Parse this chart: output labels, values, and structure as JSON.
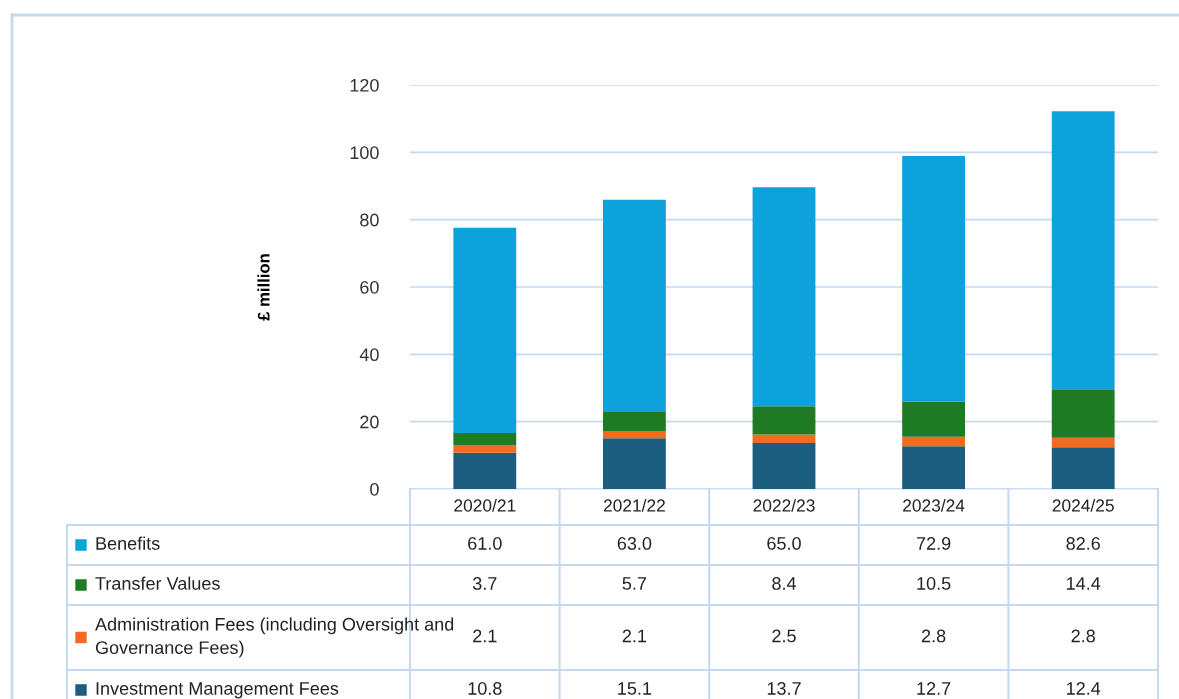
{
  "chart_data": {
    "type": "bar",
    "stacked": true,
    "ylabel": "£ million",
    "categories": [
      "2020/21",
      "2021/22",
      "2022/23",
      "2023/24",
      "2024/25"
    ],
    "series": [
      {
        "name": "Investment Management Fees",
        "color": "#1b5e80",
        "values": [
          10.8,
          15.1,
          13.7,
          12.7,
          12.4
        ],
        "value_labels": [
          "10.8",
          "15.1",
          "13.7",
          "12.7",
          "12.4"
        ]
      },
      {
        "name": "Administration Fees (including Oversight and Governance Fees)",
        "color": "#f26b21",
        "values": [
          2.1,
          2.1,
          2.5,
          2.8,
          2.8
        ],
        "value_labels": [
          "2.1",
          "2.1",
          "2.5",
          "2.8",
          "2.8"
        ]
      },
      {
        "name": "Transfer Values",
        "color": "#1f7a24",
        "values": [
          3.7,
          5.7,
          8.4,
          10.5,
          14.4
        ],
        "value_labels": [
          "3.7",
          "5.7",
          "8.4",
          "10.5",
          "14.4"
        ]
      },
      {
        "name": "Benefits",
        "color": "#0ea2dc",
        "values": [
          61.0,
          63.0,
          65.0,
          72.9,
          82.6
        ],
        "value_labels": [
          "61.0",
          "63.0",
          "65.0",
          "72.9",
          "82.6"
        ]
      }
    ],
    "ylim": [
      0,
      120
    ],
    "yticks": [
      0,
      20,
      40,
      60,
      80,
      100,
      120
    ],
    "grid": "y",
    "legend": "bottom left"
  }
}
